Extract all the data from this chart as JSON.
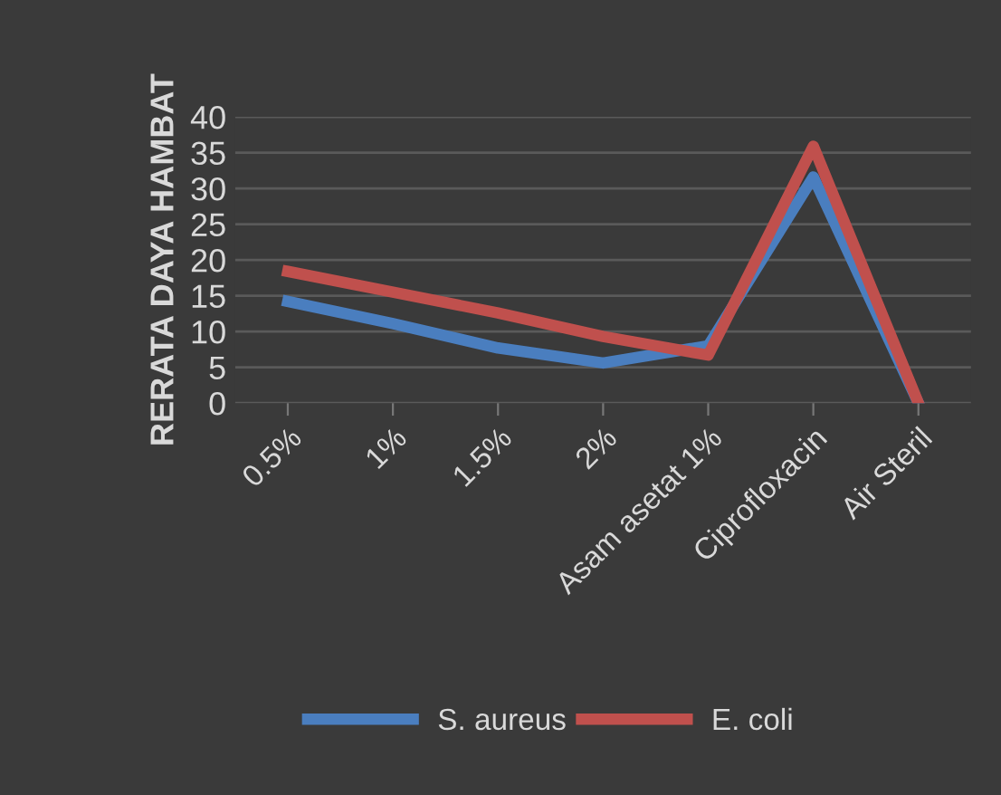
{
  "chart_data": {
    "type": "line",
    "ylabel": "RERATA DAYA HAMBAT",
    "categories": [
      "0.5%",
      "1%",
      "1.5%",
      "2%",
      "Asam asetat 1%",
      "Ciprofloxacin",
      "Air Steril"
    ],
    "series": [
      {
        "name": "S. aureus",
        "color": "#4a7ebf",
        "values": [
          14.2,
          11.1,
          7.7,
          5.6,
          8.0,
          31.6,
          0
        ]
      },
      {
        "name": "E. coli",
        "color": "#c0504d",
        "values": [
          18.4,
          15.5,
          12.6,
          9.3,
          6.7,
          35.9,
          0
        ]
      }
    ],
    "ylim": [
      0,
      40
    ],
    "yticks": [
      0,
      5,
      10,
      15,
      20,
      25,
      30,
      35,
      40
    ],
    "grid": "y",
    "legend": "bottom",
    "marker": "none",
    "line_style": "solid"
  }
}
